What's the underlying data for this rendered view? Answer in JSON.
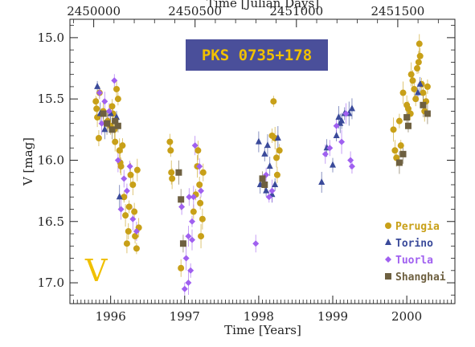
{
  "chart_data": {
    "type": "scatter",
    "title": "PKS 0735+178",
    "band_label": "V",
    "xlabel": "Time [Years]",
    "top_xlabel": "Time [Julian Days]",
    "ylabel": "V [mag]",
    "xlim": [
      1995.45,
      2000.65
    ],
    "ylim": [
      17.17,
      14.85
    ],
    "y_inverted": true,
    "x_ticks": [
      1996,
      1997,
      1998,
      1999,
      2000
    ],
    "x_tick_labels": [
      "1996",
      "1997",
      "1998",
      "1999",
      "2000"
    ],
    "top_ticks": [
      2450000,
      2450500,
      2451000,
      2451500
    ],
    "top_tick_labels": [
      "2450000",
      "2450500",
      "2451000",
      "2451500"
    ],
    "y_ticks": [
      15.0,
      15.5,
      16.0,
      16.5,
      17.0
    ],
    "y_tick_labels": [
      "15.0",
      "15.5",
      "16.0",
      "16.5",
      "17.0"
    ],
    "legend_position": "bottom-right",
    "colors": {
      "badge_bg": "#4a4f9a",
      "badge_text": "#f0c000",
      "band_label": "#f0c000"
    },
    "series": [
      {
        "name": "Perugia",
        "marker": "circle",
        "color": "#c8a018",
        "points": [
          [
            1995.8,
            15.52
          ],
          [
            1995.81,
            15.58
          ],
          [
            1995.82,
            15.65
          ],
          [
            1995.84,
            15.82
          ],
          [
            1995.85,
            15.45
          ],
          [
            1995.9,
            15.6
          ],
          [
            1995.96,
            15.68
          ],
          [
            1996.0,
            15.72
          ],
          [
            1996.02,
            15.56
          ],
          [
            1996.03,
            15.62
          ],
          [
            1996.05,
            15.75
          ],
          [
            1996.06,
            15.85
          ],
          [
            1996.08,
            15.42
          ],
          [
            1996.1,
            15.5
          ],
          [
            1996.12,
            15.92
          ],
          [
            1996.13,
            16.02
          ],
          [
            1996.14,
            16.05
          ],
          [
            1996.16,
            15.88
          ],
          [
            1996.18,
            16.3
          ],
          [
            1996.2,
            16.45
          ],
          [
            1996.22,
            16.68
          ],
          [
            1996.24,
            16.58
          ],
          [
            1996.25,
            16.38
          ],
          [
            1996.27,
            16.12
          ],
          [
            1996.3,
            16.2
          ],
          [
            1996.32,
            16.42
          ],
          [
            1996.33,
            16.62
          ],
          [
            1996.35,
            16.72
          ],
          [
            1996.36,
            16.08
          ],
          [
            1996.38,
            16.55
          ],
          [
            1996.8,
            15.85
          ],
          [
            1996.81,
            15.92
          ],
          [
            1996.82,
            16.1
          ],
          [
            1996.83,
            16.15
          ],
          [
            1996.95,
            16.88
          ],
          [
            1997.12,
            16.42
          ],
          [
            1997.15,
            16.28
          ],
          [
            1997.17,
            16.05
          ],
          [
            1997.18,
            15.92
          ],
          [
            1997.2,
            16.2
          ],
          [
            1997.21,
            16.35
          ],
          [
            1997.22,
            16.62
          ],
          [
            1997.24,
            16.48
          ],
          [
            1997.25,
            16.1
          ],
          [
            1998.18,
            15.8
          ],
          [
            1998.2,
            15.52
          ],
          [
            1998.22,
            15.82
          ],
          [
            1998.24,
            15.98
          ],
          [
            1998.25,
            16.12
          ],
          [
            1998.28,
            15.92
          ],
          [
            1999.82,
            15.75
          ],
          [
            1999.84,
            15.92
          ],
          [
            1999.86,
            15.98
          ],
          [
            1999.9,
            15.68
          ],
          [
            1999.92,
            15.88
          ],
          [
            1999.95,
            15.45
          ],
          [
            2000.0,
            15.55
          ],
          [
            2000.02,
            15.58
          ],
          [
            2000.05,
            15.62
          ],
          [
            2000.06,
            15.3
          ],
          [
            2000.08,
            15.35
          ],
          [
            2000.1,
            15.42
          ],
          [
            2000.12,
            15.5
          ],
          [
            2000.14,
            15.25
          ],
          [
            2000.16,
            15.2
          ],
          [
            2000.17,
            15.05
          ],
          [
            2000.18,
            15.15
          ],
          [
            2000.2,
            15.38
          ],
          [
            2000.22,
            15.45
          ],
          [
            2000.24,
            15.6
          ],
          [
            2000.26,
            15.52
          ],
          [
            2000.28,
            15.4
          ]
        ]
      },
      {
        "name": "Torino",
        "marker": "triangle",
        "color": "#3a4a9a",
        "points": [
          [
            1995.82,
            15.4
          ],
          [
            1995.86,
            15.62
          ],
          [
            1995.92,
            15.75
          ],
          [
            1996.0,
            15.62
          ],
          [
            1996.08,
            15.65
          ],
          [
            1996.12,
            16.3
          ],
          [
            1998.0,
            15.85
          ],
          [
            1998.02,
            16.2
          ],
          [
            1998.08,
            15.95
          ],
          [
            1998.1,
            16.25
          ],
          [
            1998.12,
            15.88
          ],
          [
            1998.15,
            16.05
          ],
          [
            1998.18,
            16.28
          ],
          [
            1998.22,
            16.2
          ],
          [
            1998.26,
            15.82
          ],
          [
            1998.85,
            16.18
          ],
          [
            1998.92,
            15.9
          ],
          [
            1999.0,
            16.04
          ],
          [
            1999.05,
            15.8
          ],
          [
            1999.08,
            15.65
          ],
          [
            1999.1,
            15.7
          ],
          [
            1999.12,
            15.68
          ],
          [
            1999.16,
            15.62
          ],
          [
            1999.22,
            15.62
          ],
          [
            1999.26,
            15.58
          ],
          [
            2000.15,
            15.45
          ],
          [
            2000.18,
            15.38
          ]
        ]
      },
      {
        "name": "Tuorla",
        "marker": "diamond",
        "color": "#a060f0",
        "points": [
          [
            1995.85,
            15.45
          ],
          [
            1995.88,
            15.7
          ],
          [
            1995.92,
            15.52
          ],
          [
            1995.98,
            15.6
          ],
          [
            1996.05,
            15.35
          ],
          [
            1996.1,
            16.0
          ],
          [
            1996.14,
            16.4
          ],
          [
            1996.18,
            16.15
          ],
          [
            1996.22,
            16.25
          ],
          [
            1996.26,
            16.05
          ],
          [
            1996.3,
            16.48
          ],
          [
            1996.35,
            16.58
          ],
          [
            1996.96,
            16.38
          ],
          [
            1997.0,
            17.05
          ],
          [
            1997.02,
            16.8
          ],
          [
            1997.05,
            16.62
          ],
          [
            1997.06,
            16.3
          ],
          [
            1997.08,
            16.9
          ],
          [
            1997.1,
            16.5
          ],
          [
            1997.12,
            16.3
          ],
          [
            1997.14,
            15.88
          ],
          [
            1997.2,
            16.05
          ],
          [
            1997.22,
            16.25
          ],
          [
            1997.05,
            17.0
          ],
          [
            1997.1,
            16.65
          ],
          [
            1997.96,
            16.68
          ],
          [
            1998.1,
            16.12
          ],
          [
            1998.14,
            16.3
          ],
          [
            1998.18,
            16.25
          ],
          [
            1998.9,
            15.95
          ],
          [
            1998.96,
            15.9
          ],
          [
            1999.05,
            15.72
          ],
          [
            1999.12,
            15.85
          ],
          [
            1999.18,
            15.62
          ],
          [
            1999.24,
            16.0
          ],
          [
            1999.26,
            16.05
          ]
        ]
      },
      {
        "name": "Shanghai",
        "marker": "square",
        "color": "#6e6040",
        "points": [
          [
            1995.9,
            15.62
          ],
          [
            1995.95,
            15.7
          ],
          [
            1996.02,
            15.75
          ],
          [
            1996.06,
            15.68
          ],
          [
            1996.1,
            15.72
          ],
          [
            1996.92,
            16.1
          ],
          [
            1996.95,
            16.32
          ],
          [
            1996.98,
            16.68
          ],
          [
            1998.05,
            16.15
          ],
          [
            1998.08,
            16.2
          ],
          [
            1999.9,
            16.02
          ],
          [
            1999.95,
            15.95
          ],
          [
            2000.0,
            15.65
          ],
          [
            2000.02,
            15.72
          ],
          [
            2000.22,
            15.55
          ],
          [
            2000.28,
            15.62
          ]
        ]
      }
    ]
  }
}
